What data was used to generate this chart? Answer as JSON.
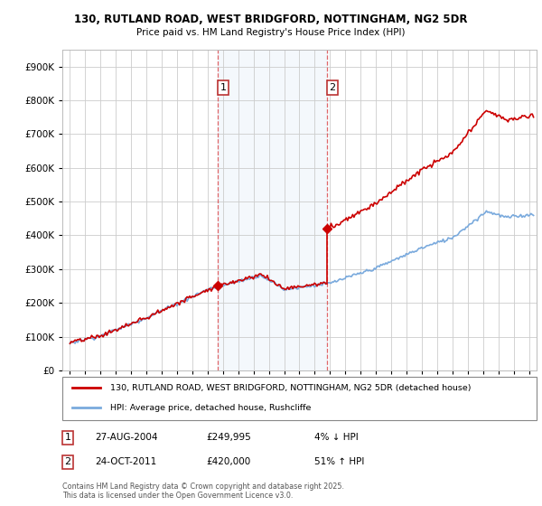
{
  "title1": "130, RUTLAND ROAD, WEST BRIDGFORD, NOTTINGHAM, NG2 5DR",
  "title2": "Price paid vs. HM Land Registry's House Price Index (HPI)",
  "legend_line1": "130, RUTLAND ROAD, WEST BRIDGFORD, NOTTINGHAM, NG2 5DR (detached house)",
  "legend_line2": "HPI: Average price, detached house, Rushcliffe",
  "transaction1_date": "27-AUG-2004",
  "transaction1_price": "£249,995",
  "transaction1_hpi": "4% ↓ HPI",
  "transaction2_date": "24-OCT-2011",
  "transaction2_price": "£420,000",
  "transaction2_hpi": "51% ↑ HPI",
  "footnote": "Contains HM Land Registry data © Crown copyright and database right 2025.\nThis data is licensed under the Open Government Licence v3.0.",
  "transaction1_x": 2004.65,
  "transaction2_x": 2011.8,
  "transaction1_y": 249995,
  "transaction2_y": 420000,
  "red_color": "#cc0000",
  "blue_color": "#7aaadd",
  "background_color": "#ffffff",
  "grid_color": "#cccccc",
  "ylim": [
    0,
    950000
  ],
  "xlim_start": 1994.5,
  "xlim_end": 2025.5
}
